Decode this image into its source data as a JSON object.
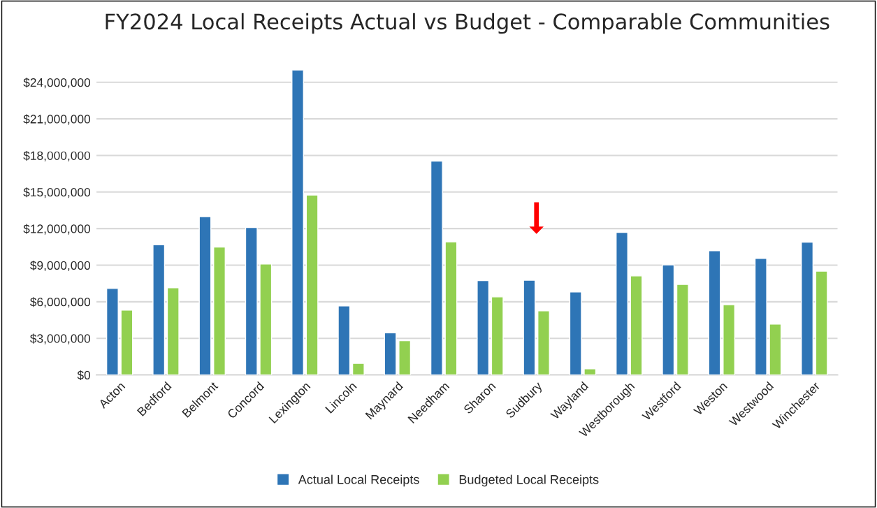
{
  "chart_data": {
    "type": "bar",
    "title": "FY2024 Local Receipts Actual vs Budget - Comparable Communities",
    "categories": [
      "Acton",
      "Bedford",
      "Belmont",
      "Concord",
      "Lexington",
      "Lincoln",
      "Maynard",
      "Needham",
      "Sharon",
      "Sudbury",
      "Wayland",
      "Westborough",
      "Westford",
      "Weston",
      "Westwood",
      "Winchester"
    ],
    "series": [
      {
        "name": "Actual Local Receipts",
        "color": "#2e75b6",
        "values": [
          7090000,
          10680000,
          12980000,
          12090000,
          25000000,
          5660000,
          3450000,
          17540000,
          7730000,
          7770000,
          6800000,
          11690000,
          9030000,
          10190000,
          9550000,
          10890000
        ]
      },
      {
        "name": "Budgeted Local Receipts",
        "color": "#92d050",
        "values": [
          5310000,
          7150000,
          10480000,
          9090000,
          14750000,
          950000,
          2810000,
          10910000,
          6400000,
          5250000,
          500000,
          8120000,
          7420000,
          5760000,
          4170000,
          8510000
        ]
      }
    ],
    "ylim": [
      0,
      25000000
    ],
    "yticks": [
      {
        "value": 0,
        "label": "$0"
      },
      {
        "value": 3000000,
        "label": "$3,000,000"
      },
      {
        "value": 6000000,
        "label": "$6,000,000"
      },
      {
        "value": 9000000,
        "label": "$9,000,000"
      },
      {
        "value": 12000000,
        "label": "$12,000,000"
      },
      {
        "value": 15000000,
        "label": "$15,000,000"
      },
      {
        "value": 18000000,
        "label": "$18,000,000"
      },
      {
        "value": 21000000,
        "label": "$21,000,000"
      },
      {
        "value": 24000000,
        "label": "$24,000,000"
      }
    ],
    "grid": "y",
    "legend": "bottom"
  }
}
